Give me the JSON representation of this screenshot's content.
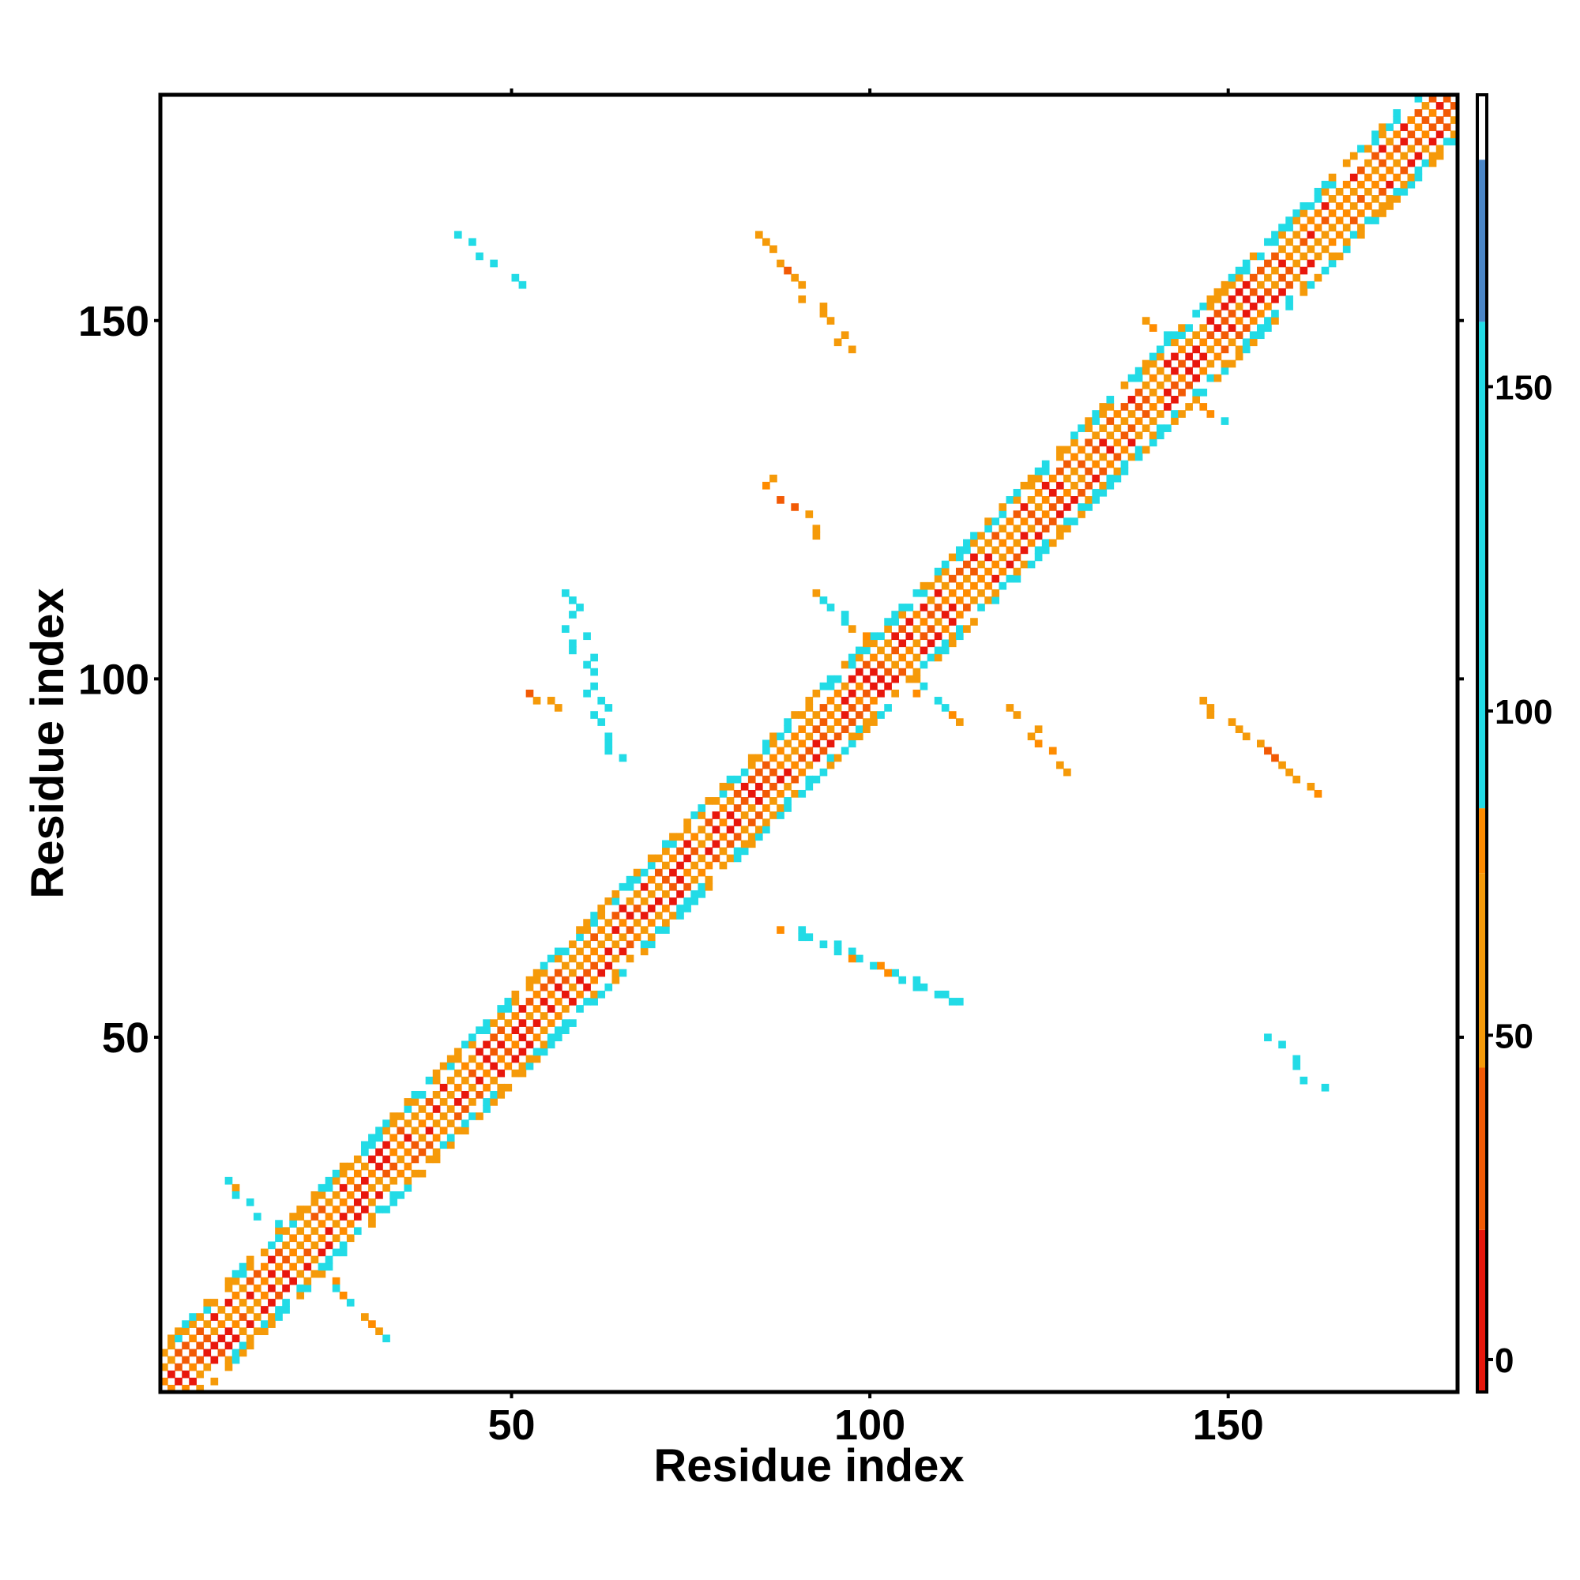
{
  "chart_data": {
    "type": "heatmap",
    "title": "",
    "xlabel": "Residue index",
    "ylabel": "Residue index",
    "xlim": [
      1,
      181
    ],
    "ylim": [
      1,
      181
    ],
    "xticks": [
      50,
      100,
      150
    ],
    "yticks": [
      50,
      100,
      150
    ],
    "colorbar": {
      "ticks": [
        0,
        50,
        100,
        150
      ],
      "range": [
        -5,
        195
      ],
      "bands": [
        {
          "from": -5,
          "to": 20,
          "color": "#e8170c"
        },
        {
          "from": 20,
          "to": 45,
          "color": "#f25a05"
        },
        {
          "from": 45,
          "to": 75,
          "color": "#f59a09"
        },
        {
          "from": 75,
          "to": 85,
          "color": "#ff8c00"
        },
        {
          "from": 85,
          "to": 160,
          "color": "#22dbe6"
        },
        {
          "from": 160,
          "to": 185,
          "color": "#4b86c7"
        },
        {
          "from": 185,
          "to": 195,
          "color": "#ffffff"
        }
      ]
    },
    "diagonal_band": {
      "from": 1,
      "to": 181,
      "half_width": 6
    },
    "contact_clusters": [
      {
        "x": [
          43,
          50
        ],
        "y": [
          155,
          162
        ],
        "value": 105
      },
      {
        "x": [
          84,
          97
        ],
        "y": [
          146,
          162
        ],
        "value": 60
      },
      {
        "x": [
          155,
          162
        ],
        "y": [
          43,
          50
        ],
        "value": 105
      },
      {
        "x": [
          146,
          162
        ],
        "y": [
          84,
          97
        ],
        "value": 60
      },
      {
        "x": [
          10,
          32
        ],
        "y": [
          8,
          30
        ],
        "value": 90
      },
      {
        "x": [
          92,
          112
        ],
        "y": [
          94,
          112
        ],
        "value": 90
      },
      {
        "x": [
          138,
          148
        ],
        "y": [
          136,
          150
        ],
        "value": 90
      },
      {
        "x": [
          85,
          92
        ],
        "y": [
          120,
          128
        ],
        "value": 60
      },
      {
        "x": [
          57,
          64
        ],
        "y": [
          89,
          112
        ],
        "value": 105
      },
      {
        "x": [
          52,
          56
        ],
        "y": [
          96,
          98
        ],
        "value": 60
      },
      {
        "x": [
          88,
          112
        ],
        "y": [
          55,
          65
        ],
        "value": 100
      },
      {
        "x": [
          119,
          128
        ],
        "y": [
          87,
          96
        ],
        "value": 60
      },
      {
        "x": [
          120,
          125
        ],
        "y": [
          124,
          126
        ],
        "value": 10
      }
    ]
  }
}
